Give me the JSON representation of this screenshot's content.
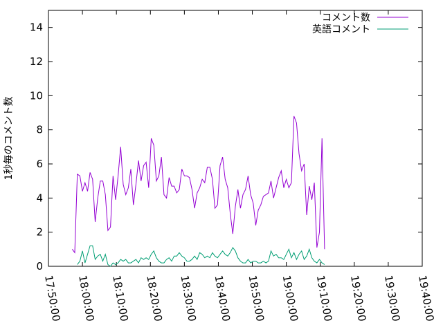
{
  "chart_data": {
    "type": "line",
    "ylabel": "1秒毎のコメント数",
    "ylim": [
      0,
      15
    ],
    "yticks": [
      0,
      2,
      4,
      6,
      8,
      10,
      12,
      14
    ],
    "xlim": [
      "17:50:00",
      "19:40:00"
    ],
    "xticks": [
      "17:50:00",
      "18:00:00",
      "18:10:00",
      "18:20:00",
      "18:30:00",
      "18:40:00",
      "18:50:00",
      "19:00:00",
      "19:10:00",
      "19:20:00",
      "19:30:00",
      "19:40:00"
    ],
    "grid": false,
    "legend_position": "top-right",
    "series": [
      {
        "name": "コメント数",
        "color": "#9400d3",
        "points": [
          [
            "17:57:00",
            1.0
          ],
          [
            "17:57:45",
            0.8
          ],
          [
            "17:58:30",
            5.4
          ],
          [
            "17:59:15",
            5.3
          ],
          [
            "18:00:00",
            4.4
          ],
          [
            "18:00:45",
            4.9
          ],
          [
            "18:01:30",
            4.4
          ],
          [
            "18:02:15",
            5.5
          ],
          [
            "18:03:00",
            5.1
          ],
          [
            "18:03:45",
            2.6
          ],
          [
            "18:04:30",
            4.0
          ],
          [
            "18:05:15",
            5.0
          ],
          [
            "18:06:00",
            5.0
          ],
          [
            "18:06:45",
            4.2
          ],
          [
            "18:07:30",
            2.1
          ],
          [
            "18:08:15",
            2.3
          ],
          [
            "18:09:00",
            5.3
          ],
          [
            "18:09:45",
            3.9
          ],
          [
            "18:10:30",
            5.3
          ],
          [
            "18:11:15",
            7.0
          ],
          [
            "18:12:00",
            4.8
          ],
          [
            "18:12:45",
            4.2
          ],
          [
            "18:13:30",
            4.6
          ],
          [
            "18:14:15",
            5.7
          ],
          [
            "18:15:00",
            3.6
          ],
          [
            "18:15:45",
            4.8
          ],
          [
            "18:16:30",
            6.2
          ],
          [
            "18:17:15",
            5.0
          ],
          [
            "18:18:00",
            5.9
          ],
          [
            "18:18:45",
            6.1
          ],
          [
            "18:19:30",
            4.6
          ],
          [
            "18:20:15",
            7.5
          ],
          [
            "18:21:00",
            7.1
          ],
          [
            "18:21:45",
            5.0
          ],
          [
            "18:22:30",
            5.3
          ],
          [
            "18:23:15",
            6.4
          ],
          [
            "18:24:00",
            4.2
          ],
          [
            "18:24:45",
            4.0
          ],
          [
            "18:25:30",
            5.2
          ],
          [
            "18:26:15",
            4.7
          ],
          [
            "18:27:00",
            4.7
          ],
          [
            "18:27:45",
            4.3
          ],
          [
            "18:28:30",
            4.5
          ],
          [
            "18:29:15",
            5.7
          ],
          [
            "18:30:00",
            5.3
          ],
          [
            "18:30:45",
            5.3
          ],
          [
            "18:31:30",
            5.2
          ],
          [
            "18:32:15",
            4.5
          ],
          [
            "18:33:00",
            3.4
          ],
          [
            "18:33:45",
            4.3
          ],
          [
            "18:34:30",
            4.6
          ],
          [
            "18:35:15",
            5.1
          ],
          [
            "18:36:00",
            4.9
          ],
          [
            "18:36:45",
            5.8
          ],
          [
            "18:37:30",
            5.8
          ],
          [
            "18:38:15",
            5.1
          ],
          [
            "18:39:00",
            3.4
          ],
          [
            "18:39:45",
            3.6
          ],
          [
            "18:40:30",
            5.9
          ],
          [
            "18:41:15",
            6.4
          ],
          [
            "18:42:00",
            5.1
          ],
          [
            "18:42:45",
            4.6
          ],
          [
            "18:43:30",
            3.1
          ],
          [
            "18:44:15",
            1.9
          ],
          [
            "18:45:00",
            3.5
          ],
          [
            "18:45:45",
            4.5
          ],
          [
            "18:46:30",
            3.4
          ],
          [
            "18:47:15",
            4.2
          ],
          [
            "18:48:00",
            4.5
          ],
          [
            "18:48:45",
            5.3
          ],
          [
            "18:49:30",
            4.2
          ],
          [
            "18:50:15",
            3.7
          ],
          [
            "18:51:00",
            2.4
          ],
          [
            "18:51:45",
            3.3
          ],
          [
            "18:52:30",
            3.6
          ],
          [
            "18:53:15",
            4.1
          ],
          [
            "18:54:00",
            4.2
          ],
          [
            "18:54:45",
            4.3
          ],
          [
            "18:55:30",
            5.0
          ],
          [
            "18:56:15",
            4.0
          ],
          [
            "18:57:00",
            4.6
          ],
          [
            "18:57:45",
            5.2
          ],
          [
            "18:58:30",
            5.6
          ],
          [
            "18:59:15",
            4.6
          ],
          [
            "19:00:00",
            5.1
          ],
          [
            "19:00:45",
            4.6
          ],
          [
            "19:01:30",
            4.9
          ],
          [
            "19:02:15",
            8.8
          ],
          [
            "19:03:00",
            8.4
          ],
          [
            "19:03:45",
            6.6
          ],
          [
            "19:04:30",
            5.6
          ],
          [
            "19:05:15",
            6.0
          ],
          [
            "19:06:00",
            3.0
          ],
          [
            "19:06:45",
            4.7
          ],
          [
            "19:07:30",
            3.9
          ],
          [
            "19:08:15",
            4.9
          ],
          [
            "19:09:00",
            1.1
          ],
          [
            "19:09:45",
            2.0
          ],
          [
            "19:10:30",
            7.5
          ],
          [
            "19:11:15",
            1.0
          ]
        ]
      },
      {
        "name": "英語コメント",
        "color": "#009e73",
        "points": [
          [
            "17:58:30",
            0.1
          ],
          [
            "17:59:15",
            0.3
          ],
          [
            "18:00:00",
            0.9
          ],
          [
            "18:00:45",
            0.2
          ],
          [
            "18:01:30",
            0.7
          ],
          [
            "18:02:15",
            1.2
          ],
          [
            "18:03:00",
            1.2
          ],
          [
            "18:03:45",
            0.4
          ],
          [
            "18:04:30",
            0.6
          ],
          [
            "18:05:15",
            0.7
          ],
          [
            "18:06:00",
            0.3
          ],
          [
            "18:06:45",
            0.7
          ],
          [
            "18:07:30",
            0.1
          ],
          [
            "18:08:15",
            0.0
          ],
          [
            "18:09:00",
            0.2
          ],
          [
            "18:09:45",
            0.1
          ],
          [
            "18:10:30",
            0.2
          ],
          [
            "18:11:15",
            0.4
          ],
          [
            "18:12:00",
            0.3
          ],
          [
            "18:12:45",
            0.4
          ],
          [
            "18:13:30",
            0.2
          ],
          [
            "18:14:15",
            0.2
          ],
          [
            "18:15:00",
            0.3
          ],
          [
            "18:15:45",
            0.4
          ],
          [
            "18:16:30",
            0.2
          ],
          [
            "18:17:15",
            0.5
          ],
          [
            "18:18:00",
            0.4
          ],
          [
            "18:18:45",
            0.5
          ],
          [
            "18:19:30",
            0.4
          ],
          [
            "18:20:15",
            0.7
          ],
          [
            "18:21:00",
            0.9
          ],
          [
            "18:21:45",
            0.5
          ],
          [
            "18:22:30",
            0.3
          ],
          [
            "18:23:15",
            0.2
          ],
          [
            "18:24:00",
            0.2
          ],
          [
            "18:24:45",
            0.4
          ],
          [
            "18:25:30",
            0.5
          ],
          [
            "18:26:15",
            0.3
          ],
          [
            "18:27:00",
            0.6
          ],
          [
            "18:27:45",
            0.6
          ],
          [
            "18:28:30",
            0.8
          ],
          [
            "18:29:15",
            0.6
          ],
          [
            "18:30:00",
            0.5
          ],
          [
            "18:30:45",
            0.3
          ],
          [
            "18:31:30",
            0.3
          ],
          [
            "18:32:15",
            0.4
          ],
          [
            "18:33:00",
            0.6
          ],
          [
            "18:33:45",
            0.4
          ],
          [
            "18:34:30",
            0.8
          ],
          [
            "18:35:15",
            0.7
          ],
          [
            "18:36:00",
            0.5
          ],
          [
            "18:36:45",
            0.6
          ],
          [
            "18:37:30",
            0.5
          ],
          [
            "18:38:15",
            0.8
          ],
          [
            "18:39:00",
            0.6
          ],
          [
            "18:39:45",
            0.5
          ],
          [
            "18:40:30",
            0.7
          ],
          [
            "18:41:15",
            0.9
          ],
          [
            "18:42:00",
            0.7
          ],
          [
            "18:42:45",
            0.6
          ],
          [
            "18:43:30",
            0.8
          ],
          [
            "18:44:15",
            1.1
          ],
          [
            "18:45:00",
            0.9
          ],
          [
            "18:45:45",
            0.5
          ],
          [
            "18:46:30",
            0.3
          ],
          [
            "18:47:15",
            0.2
          ],
          [
            "18:48:00",
            0.2
          ],
          [
            "18:48:45",
            0.4
          ],
          [
            "18:49:30",
            0.2
          ],
          [
            "18:50:15",
            0.3
          ],
          [
            "18:51:00",
            0.3
          ],
          [
            "18:51:45",
            0.2
          ],
          [
            "18:52:30",
            0.2
          ],
          [
            "18:53:15",
            0.3
          ],
          [
            "18:54:00",
            0.2
          ],
          [
            "18:54:45",
            0.3
          ],
          [
            "18:55:30",
            0.9
          ],
          [
            "18:56:15",
            0.6
          ],
          [
            "18:57:00",
            0.7
          ],
          [
            "18:57:45",
            0.5
          ],
          [
            "18:58:30",
            0.5
          ],
          [
            "18:59:15",
            0.4
          ],
          [
            "19:00:00",
            0.7
          ],
          [
            "19:00:45",
            1.0
          ],
          [
            "19:01:30",
            0.5
          ],
          [
            "19:02:15",
            0.8
          ],
          [
            "19:03:00",
            0.4
          ],
          [
            "19:03:45",
            0.7
          ],
          [
            "19:04:30",
            0.9
          ],
          [
            "19:05:15",
            0.4
          ],
          [
            "19:06:00",
            0.6
          ],
          [
            "19:06:45",
            1.0
          ],
          [
            "19:07:30",
            0.5
          ],
          [
            "19:08:15",
            0.3
          ],
          [
            "19:09:00",
            0.2
          ],
          [
            "19:09:45",
            0.4
          ],
          [
            "19:10:30",
            0.2
          ],
          [
            "19:11:15",
            0.1
          ]
        ]
      }
    ]
  }
}
